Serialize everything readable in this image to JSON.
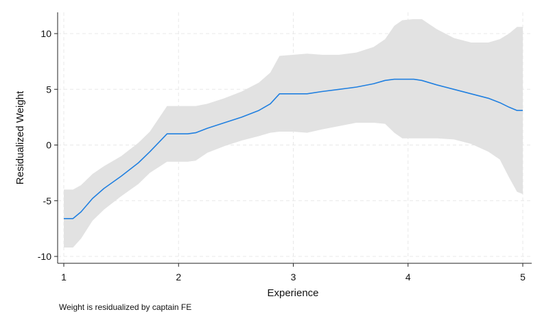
{
  "chart_data": {
    "type": "line",
    "title": "",
    "xlabel": "Experience",
    "ylabel": "Residualized Weight",
    "note": "Weight is residualized by captain FE",
    "xlim": [
      1,
      5
    ],
    "ylim": [
      -10,
      11.5
    ],
    "x_ticks": [
      1,
      2,
      3,
      4,
      5
    ],
    "y_ticks": [
      -10,
      -5,
      0,
      5,
      10
    ],
    "x_tick_labels": [
      "1",
      "2",
      "3",
      "4",
      "5"
    ],
    "y_tick_labels": [
      "-10",
      "-5",
      "0",
      "5",
      "10"
    ],
    "grid": true,
    "colors": {
      "line": "#1f7fe0",
      "band": "#e2e2e2",
      "grid": "#e8e8e8",
      "axis": "#222222"
    },
    "series": [
      {
        "type": "line",
        "x": [
          1.0,
          1.08,
          1.15,
          1.25,
          1.35,
          1.5,
          1.65,
          1.75,
          1.9,
          2.0,
          2.08,
          2.15,
          2.25,
          2.4,
          2.55,
          2.7,
          2.8,
          2.88,
          3.0,
          3.12,
          3.25,
          3.4,
          3.55,
          3.7,
          3.8,
          3.88,
          3.95,
          4.05,
          4.12,
          4.25,
          4.4,
          4.55,
          4.7,
          4.8,
          4.88,
          4.95,
          5.0
        ],
        "y": [
          -6.6,
          -6.6,
          -6.0,
          -4.8,
          -3.9,
          -2.8,
          -1.6,
          -0.6,
          1.0,
          1.0,
          1.0,
          1.1,
          1.5,
          2.0,
          2.5,
          3.1,
          3.7,
          4.6,
          4.6,
          4.6,
          4.8,
          5.0,
          5.2,
          5.5,
          5.8,
          5.9,
          5.9,
          5.9,
          5.8,
          5.4,
          5.0,
          4.6,
          4.2,
          3.8,
          3.4,
          3.1,
          3.1
        ]
      },
      {
        "type": "band",
        "x": [
          1.0,
          1.08,
          1.15,
          1.25,
          1.35,
          1.5,
          1.65,
          1.75,
          1.9,
          2.0,
          2.08,
          2.15,
          2.25,
          2.4,
          2.55,
          2.7,
          2.8,
          2.88,
          3.0,
          3.12,
          3.25,
          3.4,
          3.55,
          3.7,
          3.8,
          3.88,
          3.95,
          4.05,
          4.12,
          4.25,
          4.4,
          4.55,
          4.7,
          4.8,
          4.88,
          4.95,
          5.0
        ],
        "upper": [
          -4.0,
          -4.0,
          -3.6,
          -2.6,
          -1.9,
          -1.0,
          0.2,
          1.2,
          3.5,
          3.5,
          3.5,
          3.5,
          3.7,
          4.2,
          4.8,
          5.6,
          6.5,
          8.0,
          8.1,
          8.2,
          8.1,
          8.1,
          8.3,
          8.8,
          9.5,
          10.7,
          11.2,
          11.3,
          11.3,
          10.4,
          9.6,
          9.2,
          9.2,
          9.5,
          10.0,
          10.6,
          10.6
        ],
        "lower": [
          -9.2,
          -9.2,
          -8.4,
          -6.8,
          -5.8,
          -4.6,
          -3.5,
          -2.5,
          -1.5,
          -1.5,
          -1.5,
          -1.4,
          -0.7,
          -0.1,
          0.4,
          0.8,
          1.1,
          1.2,
          1.2,
          1.1,
          1.4,
          1.7,
          2.0,
          2.0,
          1.9,
          1.1,
          0.6,
          0.6,
          0.6,
          0.6,
          0.5,
          0.1,
          -0.6,
          -1.3,
          -2.9,
          -4.2,
          -4.4
        ]
      }
    ]
  }
}
